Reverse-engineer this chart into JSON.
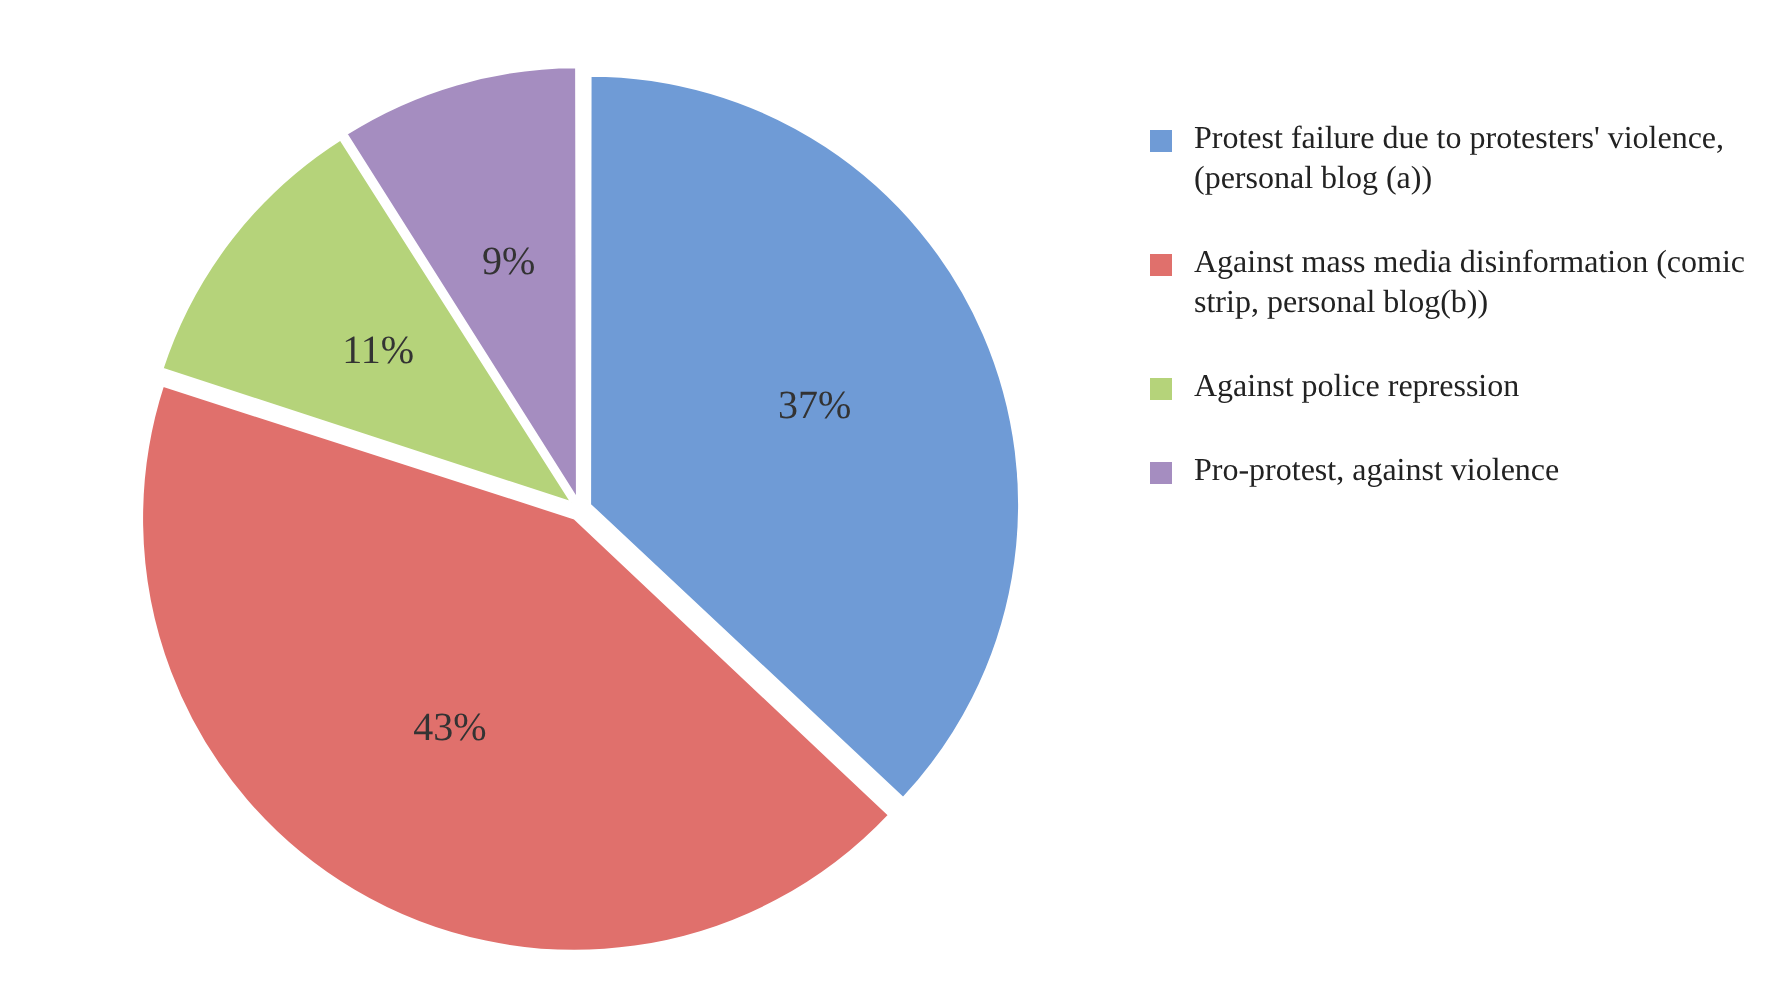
{
  "chart_data": {
    "type": "pie",
    "categories": [
      "Protest failure due to protesters' violence, (personal blog (a))",
      "Against mass media disinformation (comic strip, personal blog(b))",
      "Against police repression",
      "Pro-protest, against violence"
    ],
    "values": [
      37,
      43,
      11,
      9
    ],
    "colors": [
      "#6f9bd6",
      "#e0706c",
      "#b5d37a",
      "#a58dc0"
    ],
    "value_labels": [
      "37%",
      "43%",
      "11%",
      "9%"
    ],
    "legend": "right"
  }
}
